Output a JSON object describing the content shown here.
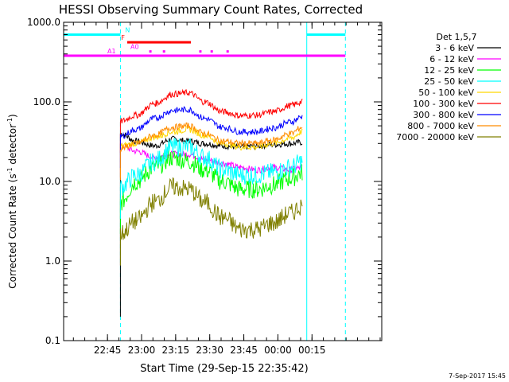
{
  "chart_data": {
    "type": "line",
    "title": "HESSI Observing Summary Count Rates, Corrected",
    "xlabel": "Start Time (29-Sep-15 22:35:42)",
    "ylabel_main": "Corrected Count Rate (s",
    "ylabel_sup1": "-1",
    "ylabel_mid": " detector",
    "ylabel_sup2": "-1",
    "ylabel_end": ")",
    "yscale": "log",
    "ylim": [
      0.1,
      1000
    ],
    "xlim_minutes": [
      -10,
      130
    ],
    "x_ticks": [
      "22:45",
      "23:00",
      "23:15",
      "23:30",
      "23:45",
      "00:00",
      "00:15"
    ],
    "x_tick_minutes": [
      9.3,
      24.3,
      39.3,
      54.3,
      69.3,
      84.3,
      99.3
    ],
    "y_ticks": [
      "0.1",
      "1.0",
      "10.0",
      "100.0",
      "1000.0"
    ],
    "y_tick_values": [
      0.1,
      1,
      10,
      100,
      1000
    ],
    "footer": "7-Sep-2017 15:45",
    "legend_title": "Det 1,5,7",
    "legend_placement": "right",
    "series": [
      {
        "name": "3 - 6 keV",
        "color": "#000000",
        "values": [
          40,
          32,
          28,
          34,
          32,
          30,
          28,
          27,
          28,
          29,
          30,
          31
        ]
      },
      {
        "name": "6 - 12 keV",
        "color": "#ff00ff",
        "values": [
          28,
          24,
          20,
          22,
          22,
          19,
          17,
          15,
          14,
          15,
          14,
          15
        ]
      },
      {
        "name": "12 - 25 keV",
        "color": "#00ff00",
        "values": [
          5.5,
          10,
          15,
          20,
          18,
          14,
          10,
          8,
          8,
          9,
          11,
          13
        ]
      },
      {
        "name": "25 - 50 keV",
        "color": "#00ffff",
        "values": [
          8.5,
          12,
          18,
          27,
          27,
          20,
          14,
          12,
          12,
          13,
          15,
          18
        ]
      },
      {
        "name": "50 - 100 keV",
        "color": "#ffd700",
        "values": [
          28,
          30,
          36,
          42,
          45,
          38,
          30,
          27,
          27,
          30,
          35,
          42
        ]
      },
      {
        "name": "100 - 300 keV",
        "color": "#ff0000",
        "values": [
          57,
          68,
          95,
          125,
          130,
          100,
          75,
          67,
          68,
          75,
          90,
          100
        ]
      },
      {
        "name": "300 - 800 keV",
        "color": "#0000ff",
        "values": [
          37,
          45,
          62,
          78,
          80,
          62,
          48,
          42,
          42,
          47,
          56,
          65
        ]
      },
      {
        "name": "800 - 7000 keV",
        "color": "#ff8c00",
        "values": [
          26,
          30,
          38,
          48,
          50,
          40,
          32,
          30,
          30,
          33,
          40,
          48
        ]
      },
      {
        "name": "7000 - 20000 keV",
        "color": "#808000",
        "values": [
          2.2,
          3.2,
          5.5,
          8.5,
          8,
          5.5,
          3.5,
          2.5,
          2.5,
          3,
          4,
          5
        ]
      }
    ],
    "series_x_minutes": [
      15,
      22,
      30,
      38,
      45,
      52,
      60,
      68,
      75,
      82,
      90,
      95
    ],
    "series_range_minutes": [
      15,
      95
    ],
    "state_bars": [
      {
        "label": "N",
        "color": "#00ffff",
        "segments": [
          [
            -10,
            15
          ],
          [
            97,
            114
          ]
        ],
        "level": 700
      },
      {
        "label": "F",
        "color": "#ff0000",
        "segments": [
          [
            18,
            46
          ]
        ],
        "level": 560
      },
      {
        "label": "A0",
        "color": "#ff00ff",
        "segments": [
          [
            28,
            28.5
          ],
          [
            34,
            34.5
          ],
          [
            50,
            50.5
          ],
          [
            55,
            55.5
          ],
          [
            62,
            62.5
          ]
        ],
        "level": 430
      },
      {
        "label": "A1",
        "color": "#ff00ff",
        "segments": [
          [
            -10,
            114
          ]
        ],
        "level": 380
      }
    ],
    "vertical_lines": [
      {
        "color": "#00ffff",
        "style": "solid",
        "minutes": [
          -10,
          97
        ]
      },
      {
        "color": "#00ffff",
        "style": "dashed",
        "minutes": [
          15,
          114
        ]
      }
    ]
  }
}
